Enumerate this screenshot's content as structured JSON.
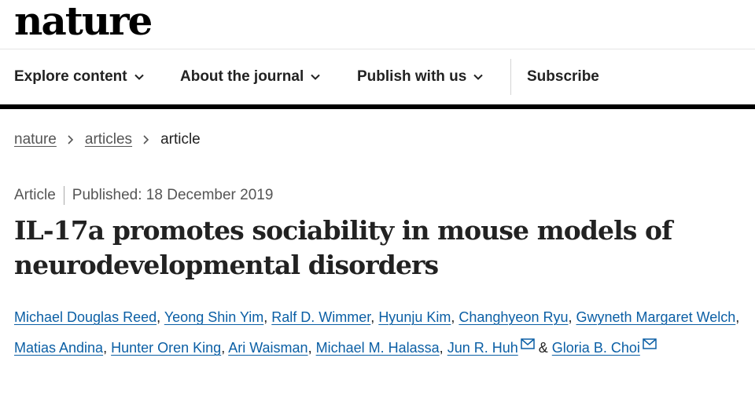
{
  "header": {
    "logo": "nature"
  },
  "nav": {
    "items": [
      {
        "label": "Explore content",
        "has_dropdown": true
      },
      {
        "label": "About the journal",
        "has_dropdown": true
      },
      {
        "label": "Publish with us",
        "has_dropdown": true
      },
      {
        "label": "Subscribe",
        "has_dropdown": false
      }
    ],
    "dropdown_icon": "chevron-down-icon"
  },
  "breadcrumb": {
    "items": [
      "nature",
      "articles",
      "article"
    ],
    "separator_icon": "chevron-right-icon"
  },
  "article": {
    "type": "Article",
    "published": "Published: 18 December 2019",
    "title_line1": "IL-17a promotes sociability in mouse models of",
    "title_line2": "neurodevelopmental disorders",
    "authors": [
      "Michael Douglas Reed",
      "Yeong Shin Yim",
      "Ralf D. Wimmer",
      "Hyunju Kim",
      "Changhyeon Ryu",
      "Gwyneth Margaret Welch",
      "Matias Andina",
      "Hunter Oren King",
      "Ari Waisman",
      "Michael M. Halassa",
      "Jun R. Huh",
      "Gloria B. Choi"
    ],
    "author_separator": ",",
    "last_separator": "&",
    "corresponding_icon": "mail-icon"
  },
  "colors": {
    "link": "#0b5fa5",
    "text": "#222222",
    "muted": "#555555",
    "rule": "#000000"
  }
}
